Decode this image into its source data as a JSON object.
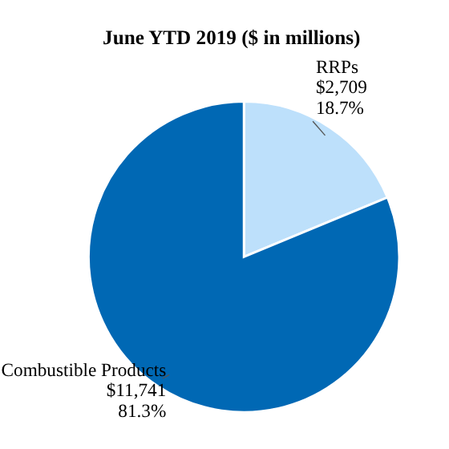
{
  "chart_data": {
    "type": "pie",
    "title": "June YTD 2019 ($ in millions)",
    "categories": [
      "RRPs",
      "Combustible Products"
    ],
    "values": [
      2709,
      11741
    ],
    "value_labels": [
      "$2,709\n18.7%",
      "$11,741\n81.3%"
    ],
    "colors": [
      "#bde0fb",
      "#0068b4"
    ]
  }
}
